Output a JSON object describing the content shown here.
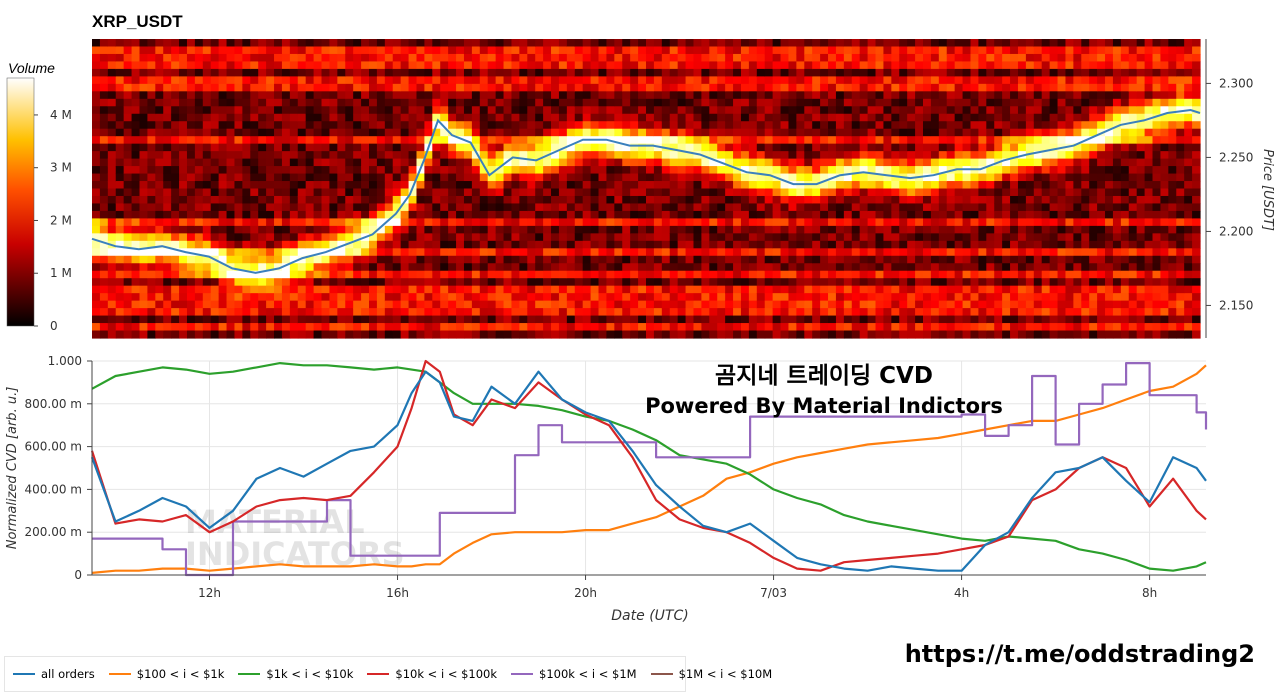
{
  "title": "XRP_USDT",
  "overlay": {
    "line1": "곰지네 트레이딩 CVD",
    "line2": "Powered By Material Indictors",
    "url": "https://t.me/oddstrading2"
  },
  "watermark": [
    "MATERIAL",
    "INDICATORS"
  ],
  "colors": {
    "all_orders": "#1f77b4",
    "s100_1k": "#ff7f0e",
    "s1k_10k": "#2ca02c",
    "s10k_100k": "#d62728",
    "s100k_1m": "#9467bd",
    "s1m_10m": "#8c564b"
  },
  "chart_data": [
    {
      "type": "heatmap",
      "title": "XRP_USDT",
      "colormap": "hot",
      "colorbar": {
        "title": "Volume",
        "range": [
          0,
          4700000
        ],
        "ticks": [
          0,
          1000000,
          2000000,
          3000000,
          4000000
        ],
        "tick_labels": [
          "0",
          "1 M",
          "2 M",
          "3 M",
          "4 M"
        ]
      },
      "ylabel": "Price [USDT]",
      "ylim": [
        2.128,
        2.33
      ],
      "y_ticks": [
        2.15,
        2.2,
        2.25,
        2.3
      ],
      "y_tick_labels": [
        "2.150",
        "2.200",
        "2.250",
        "2.300"
      ],
      "xlim_hours": [
        9.5,
        33.2
      ],
      "price_series": {
        "name": "price",
        "x_hours": [
          9.5,
          10.0,
          10.5,
          11.0,
          11.5,
          12.0,
          12.5,
          13.0,
          13.5,
          14.0,
          14.5,
          15.0,
          15.5,
          16.0,
          16.3,
          16.6,
          16.9,
          17.2,
          17.6,
          18.0,
          18.5,
          19.0,
          19.5,
          20.0,
          20.5,
          21.0,
          21.5,
          22.0,
          22.5,
          23.0,
          23.5,
          24.0,
          24.5,
          25.0,
          25.5,
          26.0,
          26.5,
          27.0,
          27.5,
          28.0,
          28.5,
          29.0,
          29.5,
          30.0,
          30.5,
          31.0,
          31.5,
          32.0,
          32.5,
          33.0,
          33.2
        ],
        "y": [
          2.195,
          2.19,
          2.188,
          2.19,
          2.186,
          2.183,
          2.175,
          2.172,
          2.175,
          2.182,
          2.186,
          2.192,
          2.198,
          2.212,
          2.225,
          2.248,
          2.275,
          2.265,
          2.26,
          2.238,
          2.25,
          2.248,
          2.255,
          2.262,
          2.262,
          2.258,
          2.258,
          2.255,
          2.252,
          2.246,
          2.24,
          2.238,
          2.232,
          2.232,
          2.238,
          2.24,
          2.238,
          2.236,
          2.238,
          2.242,
          2.242,
          2.248,
          2.252,
          2.255,
          2.258,
          2.265,
          2.272,
          2.275,
          2.28,
          2.282,
          2.28
        ]
      }
    },
    {
      "type": "line",
      "xlabel": "Date (UTC)",
      "ylabel": "Normalized CVD [arb. u.]",
      "ylim": [
        0,
        1.0
      ],
      "y_ticks": [
        0,
        0.2,
        0.4,
        0.6,
        0.8,
        1.0
      ],
      "y_tick_labels": [
        "0",
        "200.00 m",
        "400.00 m",
        "600.00 m",
        "800.00 m",
        "1.000"
      ],
      "xlim_hours": [
        9.5,
        33.2
      ],
      "x_ticks": [
        12,
        16,
        20,
        24,
        28,
        32
      ],
      "x_tick_labels": [
        "12h",
        "16h",
        "20h",
        "7/03",
        "4h",
        "8h"
      ],
      "x_hours": [
        9.5,
        10.0,
        10.5,
        11.0,
        11.5,
        12.0,
        12.5,
        13.0,
        13.5,
        14.0,
        14.5,
        15.0,
        15.5,
        16.0,
        16.3,
        16.6,
        16.9,
        17.2,
        17.6,
        18.0,
        18.5,
        19.0,
        19.5,
        20.0,
        20.5,
        21.0,
        21.5,
        22.0,
        22.5,
        23.0,
        23.5,
        24.0,
        24.5,
        25.0,
        25.5,
        26.0,
        26.5,
        27.0,
        27.5,
        28.0,
        28.5,
        29.0,
        29.5,
        30.0,
        30.5,
        31.0,
        31.5,
        32.0,
        32.5,
        33.0,
        33.2
      ],
      "series": [
        {
          "name": "all orders",
          "color_key": "all_orders",
          "values": [
            0.55,
            0.25,
            0.3,
            0.36,
            0.32,
            0.22,
            0.3,
            0.45,
            0.5,
            0.46,
            0.52,
            0.58,
            0.6,
            0.7,
            0.85,
            0.95,
            0.9,
            0.74,
            0.72,
            0.88,
            0.8,
            0.95,
            0.82,
            0.76,
            0.72,
            0.58,
            0.42,
            0.32,
            0.23,
            0.2,
            0.24,
            0.16,
            0.08,
            0.05,
            0.03,
            0.02,
            0.04,
            0.03,
            0.02,
            0.02,
            0.14,
            0.2,
            0.36,
            0.48,
            0.5,
            0.55,
            0.44,
            0.34,
            0.55,
            0.5,
            0.44
          ]
        },
        {
          "name": "$100 < i < $1k",
          "color_key": "s100_1k",
          "values": [
            0.01,
            0.02,
            0.02,
            0.03,
            0.03,
            0.02,
            0.03,
            0.04,
            0.05,
            0.04,
            0.04,
            0.04,
            0.05,
            0.04,
            0.04,
            0.05,
            0.05,
            0.1,
            0.15,
            0.19,
            0.2,
            0.2,
            0.2,
            0.21,
            0.21,
            0.24,
            0.27,
            0.32,
            0.37,
            0.45,
            0.48,
            0.52,
            0.55,
            0.57,
            0.59,
            0.61,
            0.62,
            0.63,
            0.64,
            0.66,
            0.68,
            0.7,
            0.72,
            0.72,
            0.75,
            0.78,
            0.82,
            0.86,
            0.88,
            0.94,
            0.98
          ]
        },
        {
          "name": "$1k < i < $10k",
          "color_key": "s1k_10k",
          "values": [
            0.87,
            0.93,
            0.95,
            0.97,
            0.96,
            0.94,
            0.95,
            0.97,
            0.99,
            0.98,
            0.98,
            0.97,
            0.96,
            0.97,
            0.96,
            0.95,
            0.9,
            0.85,
            0.8,
            0.8,
            0.8,
            0.79,
            0.77,
            0.74,
            0.72,
            0.68,
            0.63,
            0.56,
            0.54,
            0.52,
            0.47,
            0.4,
            0.36,
            0.33,
            0.28,
            0.25,
            0.23,
            0.21,
            0.19,
            0.17,
            0.16,
            0.18,
            0.17,
            0.16,
            0.12,
            0.1,
            0.07,
            0.03,
            0.02,
            0.04,
            0.06
          ]
        },
        {
          "name": "$10k < i < $100k",
          "color_key": "s10k_100k",
          "values": [
            0.58,
            0.24,
            0.26,
            0.25,
            0.28,
            0.2,
            0.25,
            0.32,
            0.35,
            0.36,
            0.35,
            0.37,
            0.48,
            0.6,
            0.78,
            1.0,
            0.95,
            0.75,
            0.7,
            0.82,
            0.78,
            0.9,
            0.82,
            0.75,
            0.7,
            0.55,
            0.35,
            0.26,
            0.22,
            0.2,
            0.15,
            0.08,
            0.03,
            0.02,
            0.06,
            0.07,
            0.08,
            0.09,
            0.1,
            0.12,
            0.14,
            0.18,
            0.35,
            0.4,
            0.5,
            0.55,
            0.5,
            0.32,
            0.45,
            0.3,
            0.26
          ]
        },
        {
          "name": "$100k < i < $1M",
          "color_key": "s100k_1m",
          "values": [
            0.17,
            0.17,
            0.17,
            0.12,
            0.0,
            0.0,
            0.25,
            0.25,
            0.25,
            0.25,
            0.35,
            0.09,
            0.09,
            0.09,
            0.09,
            0.09,
            0.29,
            0.29,
            0.29,
            0.29,
            0.56,
            0.7,
            0.62,
            0.62,
            0.62,
            0.62,
            0.55,
            0.55,
            0.55,
            0.55,
            0.74,
            0.74,
            0.74,
            0.74,
            0.74,
            0.74,
            0.74,
            0.74,
            0.74,
            0.75,
            0.65,
            0.7,
            0.93,
            0.61,
            0.8,
            0.89,
            0.99,
            0.84,
            0.84,
            0.76,
            0.68
          ]
        },
        {
          "name": "$1M < i < $10M",
          "color_key": "s1m_10m",
          "values": []
        }
      ]
    }
  ]
}
